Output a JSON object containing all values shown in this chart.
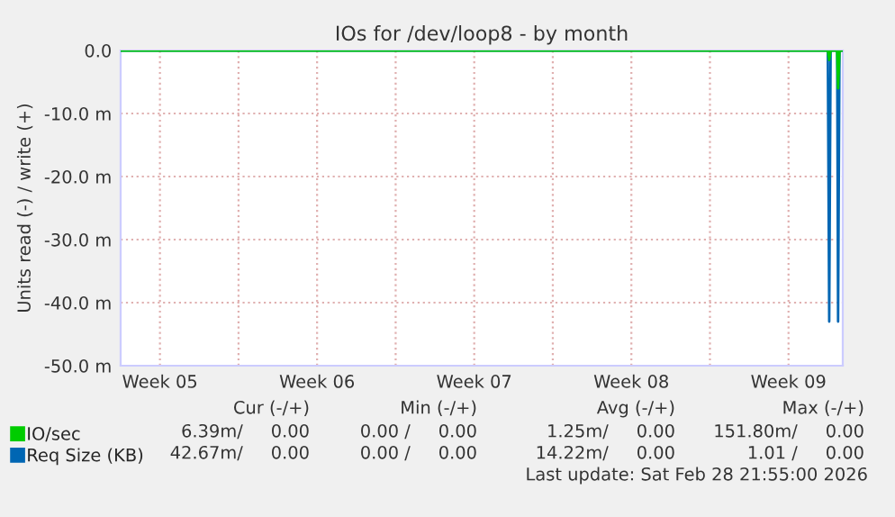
{
  "chart_data": {
    "type": "line",
    "title": "IOs for /dev/loop8 - by month",
    "ylabel": "Units read (-) / write (+)",
    "series": [
      {
        "name": "IO/sec",
        "color": "#00cc00",
        "x": [
          "2026-01-27T18:00",
          "2026-02-28T06:00",
          "2026-02-28T07:30",
          "2026-02-28T09:00",
          "2026-02-28T16:00",
          "2026-02-28T17:00",
          "2026-02-28T18:30",
          "2026-02-28T22:00"
        ],
        "values": [
          0,
          0,
          -1.5,
          0,
          0,
          -6,
          0,
          0
        ]
      },
      {
        "name": "Req Size (KB)",
        "color": "#0066b3",
        "x": [
          "2026-01-27T18:00",
          "2026-02-28T06:00",
          "2026-02-28T07:30",
          "2026-02-28T09:00",
          "2026-02-28T16:00",
          "2026-02-28T17:00",
          "2026-02-28T18:30",
          "2026-02-28T22:00"
        ],
        "values": [
          0,
          0,
          -43,
          0,
          0,
          -43,
          0,
          0
        ]
      }
    ],
    "xlim": [
      "2026-01-27T18:00",
      "2026-02-28T22:00"
    ],
    "xticks": [
      {
        "value": "2026-01-29T12:00",
        "label": "Week 05"
      },
      {
        "value": "2026-02-02",
        "label": null
      },
      {
        "value": "2026-02-05T12:00",
        "label": "Week 06"
      },
      {
        "value": "2026-02-09",
        "label": null
      },
      {
        "value": "2026-02-12T12:00",
        "label": "Week 07"
      },
      {
        "value": "2026-02-16",
        "label": null
      },
      {
        "value": "2026-02-19T12:00",
        "label": "Week 08"
      },
      {
        "value": "2026-02-23",
        "label": null
      },
      {
        "value": "2026-02-26T12:00",
        "label": "Week 09"
      }
    ],
    "ylim": [
      -50,
      0
    ],
    "yticks": [
      {
        "value": 0,
        "label": "0.0"
      },
      {
        "value": -10,
        "label": "-10.0 m"
      },
      {
        "value": -20,
        "label": "-20.0 m"
      },
      {
        "value": -30,
        "label": "-30.0 m"
      },
      {
        "value": -40,
        "label": "-40.0 m"
      },
      {
        "value": -50,
        "label": "-50.0 m"
      }
    ],
    "grid": true,
    "legend": "bottom left",
    "annotations": [
      "Cur (-/+)",
      "Min (-/+)",
      "Avg (-/+)",
      "Max (-/+)",
      "6.39m/     0.00",
      "0.00 /     0.00",
      "1.25m/     0.00",
      "151.80m/     0.00",
      "42.67m/     0.00",
      "0.00 /     0.00",
      "14.22m/     0.00",
      "1.01 /     0.00",
      "Last update: Sat Feb 28 21:55:00 2026"
    ]
  }
}
